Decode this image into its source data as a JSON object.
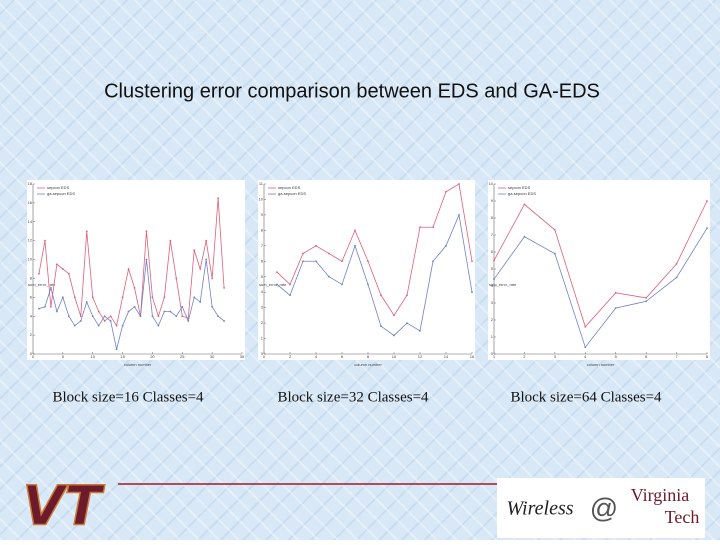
{
  "title": "Clustering error comparison between EDS and GA-EDS",
  "logo_left": "VT",
  "logo_right": {
    "word": "Wireless",
    "at": "@",
    "line1": "Virginia",
    "line2": "Tech"
  },
  "chart_data": [
    {
      "type": "line",
      "caption": "Block size=16 Classes=4",
      "xlabel": "column number",
      "ylabel": "sum_error_rate",
      "xlim": [
        0,
        35
      ],
      "xticks": [
        0,
        5,
        10,
        15,
        20,
        25,
        30,
        35
      ],
      "ylim": [
        0,
        18
      ],
      "yticks": [
        0,
        2,
        4,
        6,
        8,
        10,
        12,
        14,
        16,
        18
      ],
      "x": [
        1,
        2,
        3,
        4,
        5,
        6,
        7,
        8,
        9,
        10,
        11,
        12,
        13,
        14,
        15,
        16,
        17,
        18,
        19,
        20,
        21,
        22,
        23,
        24,
        25,
        26,
        27,
        28,
        29,
        30,
        31,
        32
      ],
      "series": [
        {
          "name": "sepcon EDS",
          "color": "#e0607a",
          "values": [
            8.5,
            12,
            5,
            9.5,
            9,
            8.5,
            6,
            4,
            13,
            6,
            4.5,
            3.5,
            4,
            3,
            6,
            9,
            7,
            4,
            13,
            6,
            4,
            6,
            12,
            8,
            4,
            3.8,
            11,
            9,
            12,
            8,
            16.5,
            7
          ]
        },
        {
          "name": "ga-sepcon EDS",
          "color": "#7080c8",
          "values": [
            4.8,
            5,
            7,
            4.5,
            6,
            4,
            3,
            3.5,
            5.5,
            4,
            3,
            4,
            3.5,
            0.5,
            3,
            4.5,
            5,
            4,
            10,
            4,
            3,
            4.5,
            4.5,
            4,
            5,
            3.5,
            6,
            5.5,
            10,
            5,
            4,
            3.5
          ]
        }
      ]
    },
    {
      "type": "line",
      "caption": "Block size=32 Classes=4",
      "xlabel": "column number",
      "ylabel": "sum_error_rate",
      "xlim": [
        0,
        16
      ],
      "xticks": [
        0,
        2,
        4,
        6,
        8,
        10,
        12,
        14,
        16
      ],
      "ylim": [
        0,
        11
      ],
      "yticks": [
        0,
        1,
        2,
        3,
        4,
        5,
        6,
        7,
        8,
        9,
        10,
        11
      ],
      "x": [
        1,
        2,
        3,
        4,
        5,
        6,
        7,
        8,
        9,
        10,
        11,
        12,
        13,
        14,
        15,
        16
      ],
      "series": [
        {
          "name": "sepcon EDS",
          "color": "#e0607a",
          "values": [
            5.3,
            4.5,
            6.5,
            7,
            6.5,
            6,
            8,
            6,
            3.8,
            2.5,
            3.8,
            8.2,
            8.2,
            10.5,
            11,
            6
          ]
        },
        {
          "name": "ga-sepcon EDS",
          "color": "#7080c8",
          "values": [
            4.5,
            3.8,
            6,
            6,
            5,
            4.5,
            7,
            4.5,
            1.8,
            1.2,
            2,
            1.5,
            6,
            7,
            9,
            4
          ]
        }
      ]
    },
    {
      "type": "line",
      "caption": "Block size=64  Classes=4",
      "xlabel": "column number",
      "ylabel": "sum_error_rate",
      "xlim": [
        1,
        8
      ],
      "xticks": [
        1,
        2,
        3,
        4,
        5,
        6,
        7,
        8
      ],
      "ylim": [
        0,
        10
      ],
      "yticks": [
        0,
        1,
        2,
        3,
        4,
        5,
        6,
        7,
        8,
        9,
        10
      ],
      "x": [
        1,
        2,
        3,
        4,
        5,
        6,
        7,
        8
      ],
      "series": [
        {
          "name": "sepcon EDS",
          "color": "#e0607a",
          "values": [
            5.5,
            8.8,
            7.3,
            1.6,
            3.6,
            3.3,
            5.3,
            9.0
          ]
        },
        {
          "name": "ga-sepcon EDS",
          "color": "#7080c8",
          "values": [
            4.4,
            6.9,
            5.9,
            0.4,
            2.7,
            3.1,
            4.5,
            7.4
          ]
        }
      ]
    }
  ]
}
